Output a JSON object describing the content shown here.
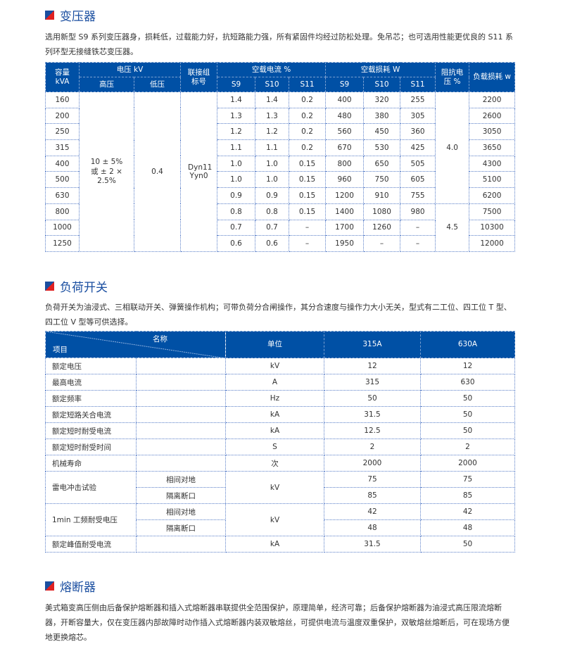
{
  "transformer": {
    "title": "变压器",
    "desc": "选用新型 S9 系列变压器身，损耗低，过载能力好，抗短路能力强，所有紧固件均经过防松处理。免吊芯；也可选用性能更优良的 S11 系列环型无接缝铁芯变压器。",
    "headers": {
      "capacity": "容量",
      "capacity_unit": "kVA",
      "voltage": "电压 kV",
      "high": "高压",
      "low": "低压",
      "group": "联接组",
      "group2": "标号",
      "noload_current": "空载电流 %",
      "noload_loss": "空载损耗 W",
      "s9": "S9",
      "s10": "S10",
      "s11": "S11",
      "impedance": "阻抗电",
      "impedance2": "压 %",
      "load_loss": "负载损耗 w"
    },
    "high_voltage": "10 ± 5% 或 ± 2 × 2.5%",
    "low_voltage": "0.4",
    "group": "Dyn11 Yyn0",
    "impedance": [
      "4.0",
      "4.5"
    ],
    "rows": [
      [
        "160",
        "1.4",
        "1.4",
        "0.2",
        "400",
        "320",
        "255",
        "2200"
      ],
      [
        "200",
        "1.3",
        "1.3",
        "0.2",
        "480",
        "380",
        "305",
        "2600"
      ],
      [
        "250",
        "1.2",
        "1.2",
        "0.2",
        "560",
        "450",
        "360",
        "3050"
      ],
      [
        "315",
        "1.1",
        "1.1",
        "0.2",
        "670",
        "530",
        "425",
        "3650"
      ],
      [
        "400",
        "1.0",
        "1.0",
        "0.15",
        "800",
        "650",
        "505",
        "4300"
      ],
      [
        "500",
        "1.0",
        "1.0",
        "0.15",
        "960",
        "750",
        "605",
        "5100"
      ],
      [
        "630",
        "0.9",
        "0.9",
        "0.15",
        "1200",
        "910",
        "755",
        "6200"
      ],
      [
        "800",
        "0.8",
        "0.8",
        "0.15",
        "1400",
        "1080",
        "980",
        "7500"
      ],
      [
        "1000",
        "0.7",
        "0.7",
        "–",
        "1700",
        "1260",
        "–",
        "10300"
      ],
      [
        "1250",
        "0.6",
        "0.6",
        "–",
        "1950",
        "–",
        "–",
        "12000"
      ]
    ]
  },
  "switch": {
    "title": "负荷开关",
    "desc": "负荷开关为油浸式、三相联动开关、弹簧操作机构；可带负荷分合闸操作，其分合速度与操作力大小无关，型式有二工位、四工位 T 型、四工位 V 型等可供选择。",
    "headers": {
      "name": "名称",
      "item": "项目",
      "unit": "单位",
      "a315": "315A",
      "a630": "630A"
    },
    "rows": [
      {
        "item": "额定电压",
        "sub": "",
        "unit": "kV",
        "v1": "12",
        "v2": "12"
      },
      {
        "item": "最高电流",
        "sub": "",
        "unit": "A",
        "v1": "315",
        "v2": "630"
      },
      {
        "item": "额定频率",
        "sub": "",
        "unit": "Hz",
        "v1": "50",
        "v2": "50"
      },
      {
        "item": "额定短路关合电流",
        "sub": "",
        "unit": "kA",
        "v1": "31.5",
        "v2": "50"
      },
      {
        "item": "额定短时耐受电流",
        "sub": "",
        "unit": "kA",
        "v1": "12.5",
        "v2": "50"
      },
      {
        "item": "额定短时耐受时间",
        "sub": "",
        "unit": "S",
        "v1": "2",
        "v2": "2"
      },
      {
        "item": "机械寿命",
        "sub": "",
        "unit": "次",
        "v1": "2000",
        "v2": "2000"
      },
      {
        "item": "雷电冲击试验",
        "sub": "相间对地",
        "unit": "kV",
        "v1": "75",
        "v2": "75",
        "span": 2
      },
      {
        "sub": "隔离断口",
        "v1": "85",
        "v2": "85"
      },
      {
        "item": "1min 工频耐受电压",
        "sub": "相间对地",
        "unit": "kV",
        "v1": "42",
        "v2": "42",
        "span": 2
      },
      {
        "sub": "隔离断口",
        "v1": "48",
        "v2": "48"
      },
      {
        "item": "额定峰值耐受电流",
        "sub": "",
        "unit": "kA",
        "v1": "31.5",
        "v2": "50"
      }
    ]
  },
  "fuse": {
    "title": "熔断器",
    "desc": "美式箱变高压侧由后备保护熔断器和插入式熔断器串联提供全范围保护，原理简单，经济可靠；后备保护熔断器为油浸式高压限流熔断器，开断容量大，仅在变压器内部故障时动作插入式熔断器内装双敏熔丝，可提供电流与温度双重保护，双敏熔丝熔断后，可在现场方便地更换熔芯。"
  }
}
